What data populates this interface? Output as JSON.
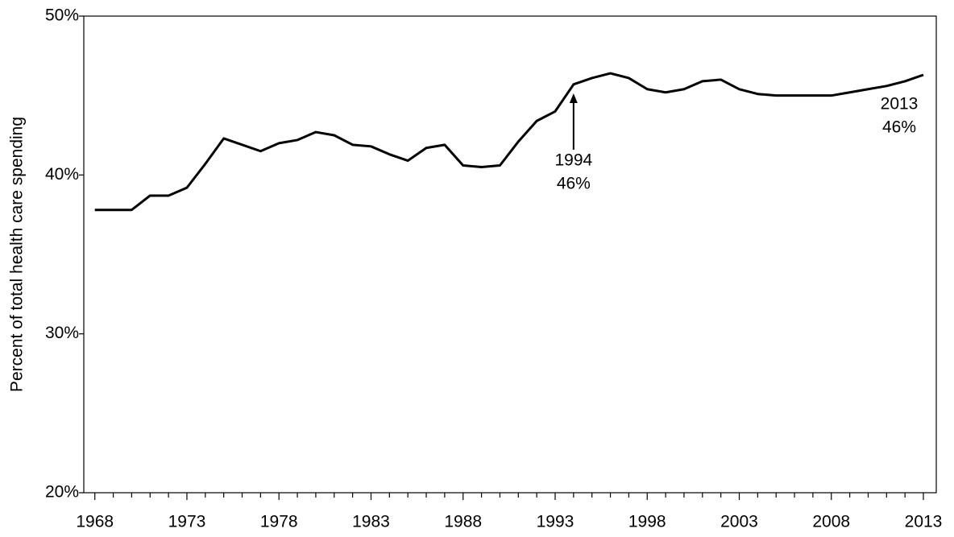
{
  "chart_data": {
    "type": "line",
    "y_axis_label": "Percent of total health care spending",
    "x": [
      1968,
      1969,
      1970,
      1971,
      1972,
      1973,
      1974,
      1975,
      1976,
      1977,
      1978,
      1979,
      1980,
      1981,
      1982,
      1983,
      1984,
      1985,
      1986,
      1987,
      1988,
      1989,
      1990,
      1991,
      1992,
      1993,
      1994,
      1995,
      1996,
      1997,
      1998,
      1999,
      2000,
      2001,
      2002,
      2003,
      2004,
      2005,
      2006,
      2007,
      2008,
      2009,
      2010,
      2011,
      2012,
      2013
    ],
    "series": [
      {
        "color": "#000000",
        "values": [
          37.8,
          37.8,
          37.8,
          38.7,
          38.7,
          39.2,
          40.7,
          42.3,
          41.9,
          41.5,
          42.0,
          42.2,
          42.7,
          42.5,
          41.9,
          41.8,
          41.3,
          40.9,
          41.7,
          41.9,
          40.6,
          40.5,
          40.6,
          42.1,
          43.4,
          44.0,
          45.7,
          46.1,
          46.4,
          46.1,
          45.4,
          45.2,
          45.4,
          45.9,
          46.0,
          45.4,
          45.1,
          45.0,
          45.0,
          45.0,
          45.0,
          45.2,
          45.4,
          45.6,
          45.9,
          46.3
        ]
      }
    ],
    "xlim": [
      1967.4,
      2013.7
    ],
    "xticks": [
      1968,
      1973,
      1978,
      1983,
      1988,
      1993,
      1998,
      2003,
      2008,
      2013
    ],
    "xminorticks": [
      1969,
      1970,
      1971,
      1972,
      1974,
      1975,
      1976,
      1977,
      1979,
      1980,
      1981,
      1982,
      1984,
      1985,
      1986,
      1987,
      1989,
      1990,
      1991,
      1992,
      1994,
      1995,
      1996,
      1997,
      1999,
      2000,
      2001,
      2002,
      2004,
      2005,
      2006,
      2007,
      2009,
      2010,
      2011,
      2012
    ],
    "ylim": [
      20,
      50
    ],
    "yticks": [
      {
        "value": 20,
        "label": "20%"
      },
      {
        "value": 30,
        "label": "30%"
      },
      {
        "value": 40,
        "label": "40%"
      },
      {
        "value": 50,
        "label": "50%"
      }
    ],
    "annotations": [
      {
        "x": 1994,
        "lines": [
          "1994",
          "46%"
        ],
        "arrow": true
      },
      {
        "x": 2013,
        "lines": [
          "2013",
          "46%"
        ],
        "arrow": false
      }
    ]
  }
}
